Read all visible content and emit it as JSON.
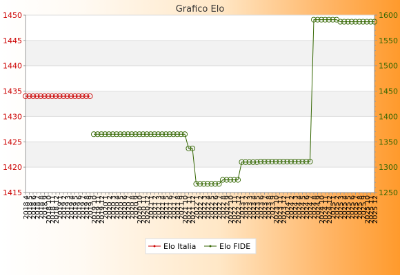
{
  "chart_data": {
    "type": "line",
    "title": "Grafico Elo",
    "left_axis": {
      "min": 1415,
      "max": 1450,
      "ticks": [
        1415,
        1420,
        1425,
        1430,
        1435,
        1440,
        1445,
        1450
      ],
      "color": "#cc0000"
    },
    "right_axis": {
      "min": 1250,
      "max": 1600,
      "ticks": [
        1250,
        1300,
        1350,
        1400,
        1450,
        1500,
        1550,
        1600
      ],
      "color": "#336600"
    },
    "grid": true,
    "legend_position": "bottom",
    "x_labels": [
      "2018 4",
      "2018 5",
      "2018 6",
      "2018 7",
      "2018 8",
      "2018 9",
      "2018 10",
      "2018 11",
      "2018 12",
      "2019 1",
      "2019 2",
      "2019 3",
      "2019 4",
      "2019 5",
      "2019 6",
      "2019 7",
      "2019 8",
      "2019 9",
      "2019 10",
      "2019 11",
      "2019 12",
      "2020 1",
      "2020 2",
      "2020 3",
      "2020 4",
      "2020 5",
      "2020 6",
      "2020 7",
      "2020 8",
      "2020 9",
      "2020 10",
      "2020 11",
      "2020 12",
      "2021 1",
      "2021 2",
      "2021 3",
      "2021 4",
      "2021 5",
      "2021 6",
      "2021 7",
      "2021 8",
      "2021 9",
      "2021 10",
      "2021 11",
      "2021 12",
      "2022 1",
      "2022 2",
      "2022 3",
      "2022 4",
      "2022 5",
      "2022 6",
      "2022 7",
      "2022 8",
      "2022 9",
      "2022 10",
      "2022 11",
      "2022 12",
      "2023 1",
      "2023 2",
      "2023 3",
      "2023 4",
      "2023 5",
      "2023 6",
      "2023 7",
      "2023 8",
      "2023 9",
      "2023 10",
      "2023 11",
      "2023 12",
      "2024 1",
      "2024 2",
      "2024 3",
      "2024 4",
      "2024 5",
      "2024 6",
      "2024 7",
      "2024 8",
      "2024 9",
      "2024 10",
      "2024 11",
      "2024 12",
      "2025 1",
      "2025 2",
      "2025 3",
      "2025 4",
      "2025 5",
      "2025 6",
      "2025 7",
      "2025 8",
      "2025 9",
      "2025 10",
      "2025 11",
      "2025 12"
    ],
    "series": [
      {
        "name": "Elo Italia",
        "axis": "left",
        "color": "#cc0000",
        "values": [
          1434,
          1434,
          1434,
          1434,
          1434,
          1434,
          1434,
          1434,
          1434,
          1434,
          1434,
          1434,
          1434,
          1434,
          1434,
          1434,
          1434,
          1434,
          null,
          null,
          null,
          null,
          null,
          null,
          null,
          null,
          null,
          null,
          null,
          null,
          null,
          null,
          null,
          null,
          null,
          null,
          null,
          null,
          null,
          null,
          null,
          null,
          null,
          null,
          null,
          null,
          null,
          null,
          null,
          null,
          null,
          null,
          null,
          null,
          null,
          null,
          null,
          null,
          null,
          null,
          null,
          null,
          null,
          null,
          null,
          null,
          null,
          null,
          null,
          null,
          null,
          null,
          null,
          null,
          null,
          null,
          null,
          null,
          null,
          null,
          null,
          null,
          null,
          null,
          null,
          null,
          null,
          null,
          null,
          null,
          null,
          null,
          null
        ]
      },
      {
        "name": "Elo FIDE",
        "axis": "right",
        "color": "#336600",
        "values": [
          null,
          null,
          null,
          null,
          null,
          null,
          null,
          null,
          null,
          null,
          null,
          null,
          null,
          null,
          null,
          null,
          null,
          null,
          1365,
          1365,
          1365,
          1365,
          1365,
          1365,
          1365,
          1365,
          1365,
          1365,
          1365,
          1365,
          1365,
          1365,
          1365,
          1365,
          1365,
          1365,
          1365,
          1365,
          1365,
          1365,
          1365,
          1365,
          1365,
          1337,
          1337,
          1267,
          1267,
          1267,
          1267,
          1267,
          1267,
          1267,
          1275,
          1275,
          1275,
          1275,
          1275,
          1310,
          1310,
          1310,
          1310,
          1310,
          1311,
          1311,
          1311,
          1311,
          1311,
          1311,
          1311,
          1311,
          1311,
          1311,
          1311,
          1311,
          1311,
          1311,
          1591,
          1591,
          1591,
          1591,
          1591,
          1591,
          1591,
          1587,
          1587,
          1587,
          1587,
          1587,
          1587,
          1587,
          1587,
          1587,
          1587
        ]
      }
    ]
  }
}
